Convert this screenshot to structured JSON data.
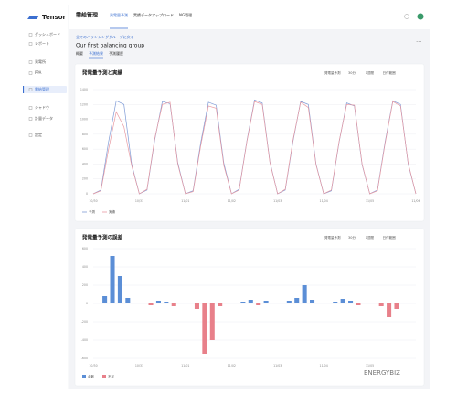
{
  "sidebar": {
    "logo": "Tensor",
    "items": [
      "ダッシュボード",
      "レポート",
      "発電所",
      "PPA",
      "需給管理",
      "シャドウ",
      "計量データ",
      "設定"
    ]
  },
  "header": {
    "title": "需給管理",
    "tabs": [
      "発電量予測",
      "実績データアップロード",
      "NG管理"
    ]
  },
  "page": {
    "back": "全てのバランシンググループに戻る",
    "title": "Our first balancing group",
    "subtabs": [
      "概要",
      "予測結果",
      "予測履歴"
    ]
  },
  "watermark": "ENERGYBIZ",
  "chart_data": [
    {
      "type": "line",
      "title": "発電量予測と実績",
      "toolbar": [
        "発電量予測",
        "30分",
        "1週間",
        "日付範囲"
      ],
      "categories": [
        "10/30",
        null,
        null,
        null,
        null,
        null,
        "10/31",
        null,
        null,
        null,
        null,
        null,
        "11/01",
        null,
        null,
        null,
        null,
        null,
        "11/02",
        null,
        null,
        null,
        null,
        null,
        "11/03",
        null,
        null,
        null,
        null,
        null,
        "11/04",
        null,
        null,
        null,
        null,
        null,
        "11/05",
        null,
        null,
        null,
        null,
        null,
        "11/06"
      ],
      "series": [
        {
          "name": "予測",
          "color": "#7f9bd6",
          "values": [
            0,
            50,
            700,
            1250,
            1200,
            400,
            0,
            50,
            720,
            1240,
            1210,
            420,
            0,
            40,
            690,
            1230,
            1190,
            410,
            0,
            60,
            710,
            1260,
            1220,
            430,
            0,
            50,
            700,
            1240,
            1200,
            400,
            0,
            40,
            690,
            1220,
            1180,
            390,
            0,
            50,
            700,
            1250,
            1200,
            400,
            0
          ]
        },
        {
          "name": "実績",
          "color": "#e89aa2",
          "values": [
            0,
            40,
            600,
            1100,
            900,
            380,
            0,
            60,
            740,
            1200,
            1230,
            400,
            0,
            30,
            650,
            1180,
            1150,
            380,
            0,
            50,
            700,
            1240,
            1200,
            420,
            0,
            60,
            720,
            1230,
            1160,
            390,
            0,
            50,
            700,
            1200,
            1190,
            400,
            0,
            40,
            680,
            1240,
            1180,
            410,
            0
          ]
        }
      ],
      "ylim": [
        0,
        1400
      ],
      "yticks": [
        0,
        200,
        400,
        600,
        800,
        1000,
        1200,
        1400
      ],
      "grid": true
    },
    {
      "type": "bar",
      "title": "発電量予測の誤差",
      "toolbar": [
        "発電量予測",
        "30分",
        "1週間",
        "日付範囲"
      ],
      "categories": [
        "10/30",
        null,
        null,
        null,
        null,
        null,
        "10/31",
        null,
        null,
        null,
        null,
        null,
        "11/01",
        null,
        null,
        null,
        null,
        null,
        "11/02",
        null,
        null,
        null,
        null,
        null,
        "11/03",
        null,
        null,
        null,
        null,
        null,
        "11/04",
        null,
        null,
        null,
        null,
        null,
        "11/05",
        null,
        null,
        null,
        null,
        null
      ],
      "values": [
        0,
        80,
        520,
        300,
        60,
        0,
        0,
        -20,
        30,
        20,
        -30,
        0,
        0,
        -60,
        -550,
        -400,
        -30,
        0,
        0,
        20,
        40,
        -20,
        30,
        0,
        0,
        30,
        60,
        200,
        40,
        0,
        0,
        20,
        50,
        30,
        -20,
        0,
        0,
        -30,
        -150,
        -60,
        10,
        0
      ],
      "legend": [
        {
          "name": "余剰",
          "color": "#5b8ed6"
        },
        {
          "name": "不足",
          "color": "#e8808a"
        }
      ],
      "ylim": [
        -600,
        600
      ],
      "yticks": [
        -600,
        -400,
        -200,
        0,
        200,
        400,
        600
      ],
      "grid": true
    }
  ]
}
